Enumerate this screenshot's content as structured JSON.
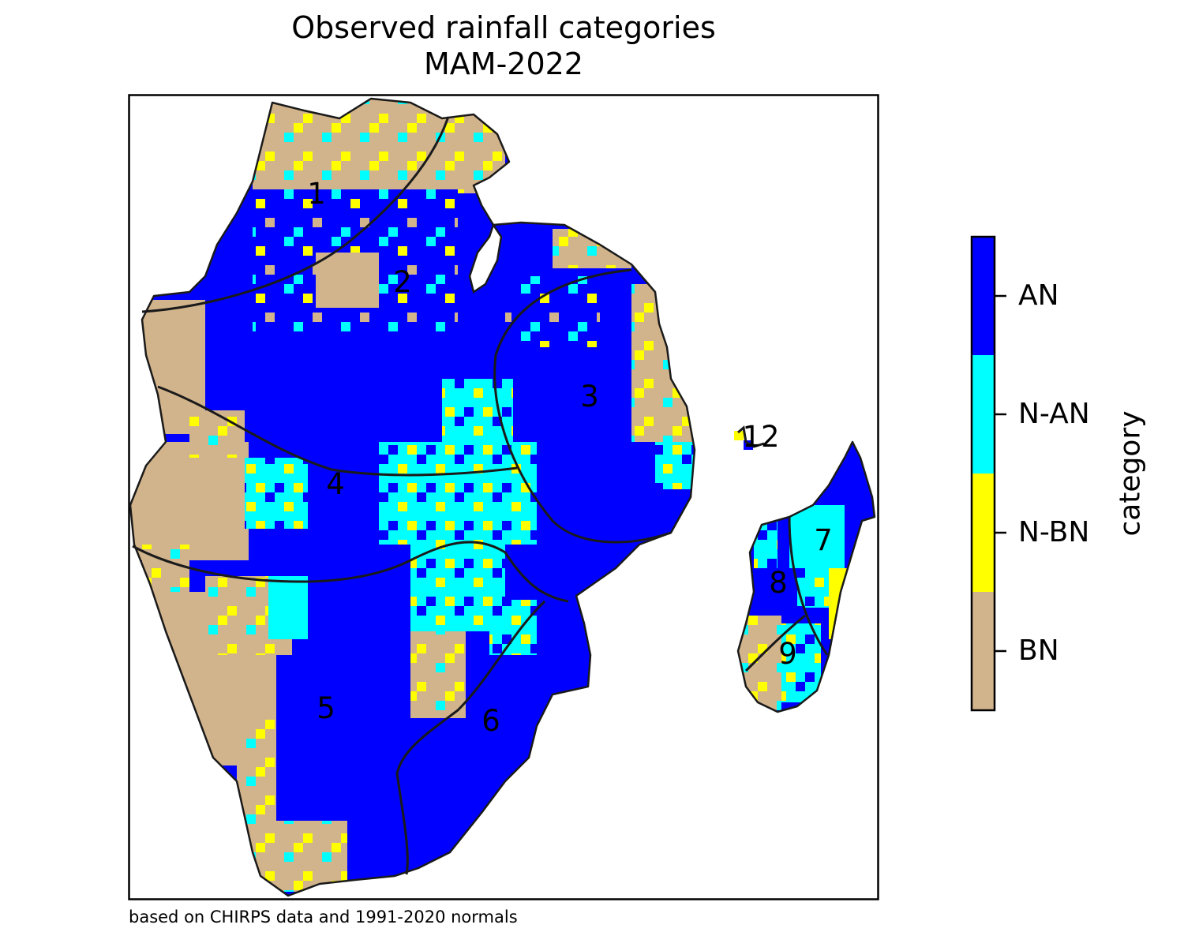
{
  "title": {
    "line1": "Observed rainfall categories",
    "line2": "MAM-2022"
  },
  "note": "based on CHIRPS data and 1991-2020 normals",
  "legend": {
    "title": "category",
    "categories": [
      {
        "label": "AN",
        "color": "#0000ff"
      },
      {
        "label": "N-AN",
        "color": "#00ffff"
      },
      {
        "label": "N-BN",
        "color": "#ffff00"
      },
      {
        "label": "BN",
        "color": "#d2b48c"
      }
    ]
  },
  "zones": [
    "1",
    "2",
    "3",
    "4",
    "5",
    "6",
    "7",
    "8",
    "9",
    "12"
  ],
  "colors": {
    "AN": "#0000ff",
    "N-AN": "#00ffff",
    "N-BN": "#ffff00",
    "BN": "#d2b48c",
    "outline": "#1a1a1a"
  }
}
